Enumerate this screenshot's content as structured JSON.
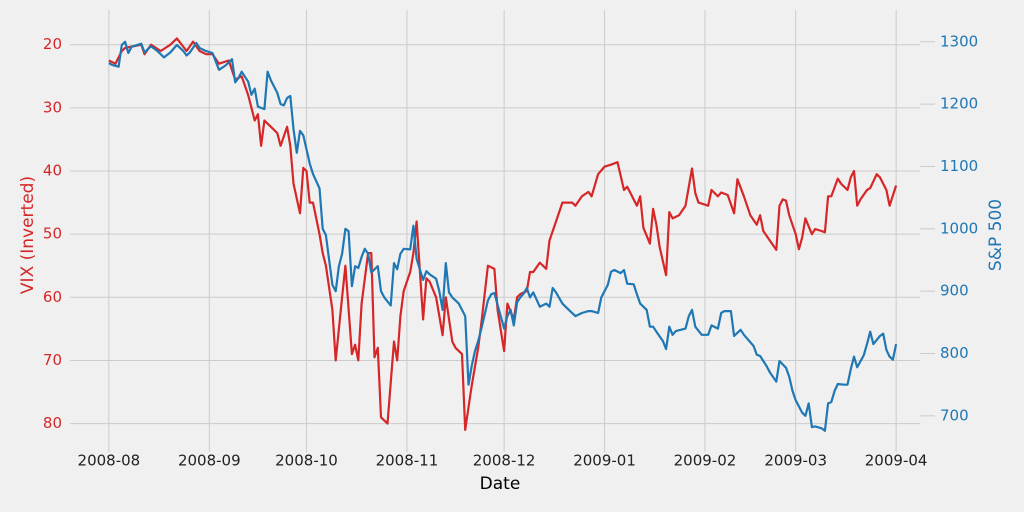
{
  "chart_data": {
    "type": "line",
    "xlabel": "Date",
    "ylabel": "VIX (Inverted)",
    "y2label": "S&P 500",
    "xlim": [
      -12,
      255
    ],
    "xticks": [
      {
        "value": 0,
        "label": "2008-08"
      },
      {
        "value": 31,
        "label": "2008-09"
      },
      {
        "value": 61,
        "label": "2008-10"
      },
      {
        "value": 92,
        "label": "2008-11"
      },
      {
        "value": 122,
        "label": "2008-12"
      },
      {
        "value": 153,
        "label": "2009-01"
      },
      {
        "value": 184,
        "label": "2009-02"
      },
      {
        "value": 212,
        "label": "2009-03"
      },
      {
        "value": 243,
        "label": "2009-04"
      }
    ],
    "ylim": [
      14.5,
      84.5
    ],
    "y_inverted": true,
    "yticks": [
      20,
      30,
      40,
      50,
      60,
      70,
      80
    ],
    "y2lim": [
      642,
      1351
    ],
    "y2ticks": [
      700,
      800,
      900,
      1000,
      1100,
      1200,
      1300
    ],
    "grid": true,
    "series": [
      {
        "name": "VIX (Inverted)",
        "color": "#d62728",
        "axis": "y",
        "x": [
          0,
          2,
          4,
          5,
          8,
          10,
          11,
          13,
          16,
          19,
          21,
          24,
          26,
          28,
          30,
          32,
          34,
          37,
          39,
          41,
          43,
          45,
          46,
          47,
          48,
          50,
          52,
          53,
          55,
          56,
          57,
          59,
          60,
          61,
          62,
          63,
          65,
          66,
          67,
          69,
          70,
          71,
          72,
          73,
          75,
          76,
          77,
          78,
          80,
          81,
          82,
          83,
          84,
          86,
          88,
          89,
          90,
          91,
          93,
          94,
          95,
          97,
          98,
          99,
          101,
          103,
          104,
          106,
          107,
          109,
          110,
          112,
          114,
          115,
          117,
          119,
          120,
          122,
          123,
          125,
          126,
          127,
          129,
          130,
          131,
          133,
          135,
          136,
          138,
          140,
          143,
          144,
          146,
          148,
          149,
          151,
          153,
          155,
          157,
          159,
          160,
          161,
          163,
          164,
          165,
          167,
          168,
          169,
          170,
          172,
          173,
          174,
          176,
          178,
          180,
          181,
          182,
          185,
          186,
          188,
          189,
          191,
          193,
          194,
          196,
          198,
          200,
          201,
          202,
          204,
          206,
          207,
          208,
          209,
          210,
          212,
          213,
          214,
          215,
          217,
          218,
          220,
          221,
          222,
          223,
          225,
          226,
          228,
          229,
          230,
          231,
          232,
          234,
          235,
          237,
          238,
          240,
          241,
          243
        ],
        "values": [
          22.5,
          23,
          21,
          20.5,
          20.2,
          20,
          21.5,
          20,
          21,
          20,
          19,
          21,
          19.5,
          21,
          21.5,
          21.5,
          23,
          22.5,
          25.5,
          25,
          28,
          32,
          31,
          36,
          32,
          33,
          34,
          36,
          33,
          36,
          42,
          46.7,
          39.5,
          40,
          45,
          45,
          50,
          53,
          55,
          62,
          70,
          65,
          60,
          55,
          69,
          67.5,
          70,
          61,
          53,
          53,
          69.5,
          68,
          79,
          80,
          67,
          70,
          63,
          59,
          56,
          53,
          48,
          63.5,
          57,
          57.5,
          60,
          66,
          60,
          67,
          68,
          69,
          81,
          74,
          68,
          64,
          55,
          55.5,
          62,
          68.5,
          61,
          63.5,
          60,
          59.5,
          59,
          56,
          56,
          54.5,
          55.5,
          51,
          48,
          45,
          45,
          45.5,
          44,
          43.3,
          44,
          40.5,
          39.3,
          39,
          38.6,
          43,
          42.5,
          43.5,
          45.5,
          44,
          49,
          51.5,
          46,
          48.5,
          52,
          56.5,
          46.5,
          47.5,
          47,
          45.5,
          39.6,
          43.5,
          45,
          45.5,
          43,
          44,
          43.4,
          43.8,
          46.7,
          41.3,
          44,
          47,
          48.5,
          47,
          49.5,
          51,
          52.5,
          45.5,
          44.5,
          44.7,
          47,
          50,
          52.4,
          50.5,
          47.5,
          50,
          49.2,
          49.5,
          49.7,
          44,
          44,
          41.2,
          42,
          43,
          41,
          40,
          45.5,
          44.5,
          43,
          42.7,
          40.5,
          41,
          43,
          45.5,
          42.3
        ]
      },
      {
        "name": "S&P 500",
        "color": "#1f77b4",
        "axis": "y2",
        "x": [
          0,
          1,
          3,
          4,
          5,
          6,
          7,
          10,
          11,
          13,
          15,
          17,
          19,
          21,
          23,
          24,
          25,
          27,
          28,
          30,
          32,
          34,
          36,
          38,
          39,
          40,
          41,
          43,
          44,
          45,
          46,
          48,
          49,
          50,
          52,
          53,
          54,
          55,
          56,
          57,
          58,
          59,
          60,
          62,
          63,
          65,
          66,
          67,
          69,
          70,
          71,
          72,
          73,
          74,
          75,
          76,
          77,
          78,
          79,
          80,
          81,
          83,
          84,
          85,
          87,
          88,
          89,
          90,
          91,
          93,
          94,
          95,
          97,
          98,
          99,
          101,
          102,
          103,
          104,
          105,
          106,
          108,
          110,
          111,
          112,
          113,
          114,
          115,
          117,
          118,
          119,
          120,
          122,
          123,
          124,
          125,
          126,
          127,
          128,
          129,
          130,
          131,
          133,
          135,
          136,
          137,
          138,
          140,
          142,
          144,
          146,
          148,
          149,
          151,
          152,
          154,
          155,
          156,
          158,
          159,
          160,
          162,
          163,
          164,
          166,
          167,
          168,
          169,
          171,
          172,
          173,
          174,
          175,
          178,
          179,
          180,
          181,
          183,
          184,
          185,
          186,
          188,
          189,
          190,
          192,
          193,
          195,
          196,
          199,
          200,
          201,
          203,
          204,
          206,
          207,
          209,
          210,
          211,
          212,
          214,
          215,
          216,
          217,
          218,
          220,
          221,
          222,
          223,
          224,
          225,
          227,
          228,
          229,
          230,
          231,
          233,
          234,
          235,
          236,
          238,
          239,
          240,
          241,
          242,
          243
        ],
        "values": [
          1266,
          1263,
          1260,
          1295,
          1300,
          1282,
          1292,
          1297,
          1283,
          1293,
          1285,
          1275,
          1283,
          1295,
          1285,
          1278,
          1283,
          1298,
          1290,
          1285,
          1282,
          1255,
          1262,
          1272,
          1235,
          1242,
          1252,
          1236,
          1215,
          1225,
          1196,
          1192,
          1252,
          1238,
          1218,
          1200,
          1198,
          1210,
          1213,
          1160,
          1122,
          1157,
          1150,
          1105,
          1088,
          1065,
          1000,
          990,
          910,
          900,
          940,
          960,
          1000,
          996,
          908,
          940,
          937,
          955,
          968,
          960,
          930,
          940,
          900,
          890,
          877,
          945,
          935,
          960,
          968,
          967,
          1005,
          952,
          918,
          932,
          927,
          920,
          900,
          870,
          945,
          898,
          890,
          880,
          860,
          750,
          780,
          804,
          820,
          840,
          885,
          895,
          897,
          878,
          840,
          860,
          870,
          845,
          882,
          890,
          896,
          905,
          890,
          898,
          875,
          880,
          875,
          905,
          898,
          880,
          870,
          860,
          865,
          868,
          868,
          865,
          890,
          910,
          931,
          934,
          929,
          934,
          912,
          911,
          895,
          880,
          870,
          843,
          843,
          835,
          820,
          807,
          843,
          830,
          836,
          840,
          860,
          870,
          843,
          830,
          830,
          830,
          845,
          840,
          865,
          868,
          868,
          828,
          838,
          830,
          812,
          798,
          796,
          780,
          770,
          755,
          788,
          777,
          763,
          740,
          725,
          705,
          700,
          720,
          682,
          683,
          680,
          676,
          720,
          722,
          740,
          751,
          750,
          750,
          775,
          795,
          778,
          797,
          815,
          835,
          815,
          828,
          832,
          806,
          795,
          790,
          815
        ]
      }
    ]
  }
}
